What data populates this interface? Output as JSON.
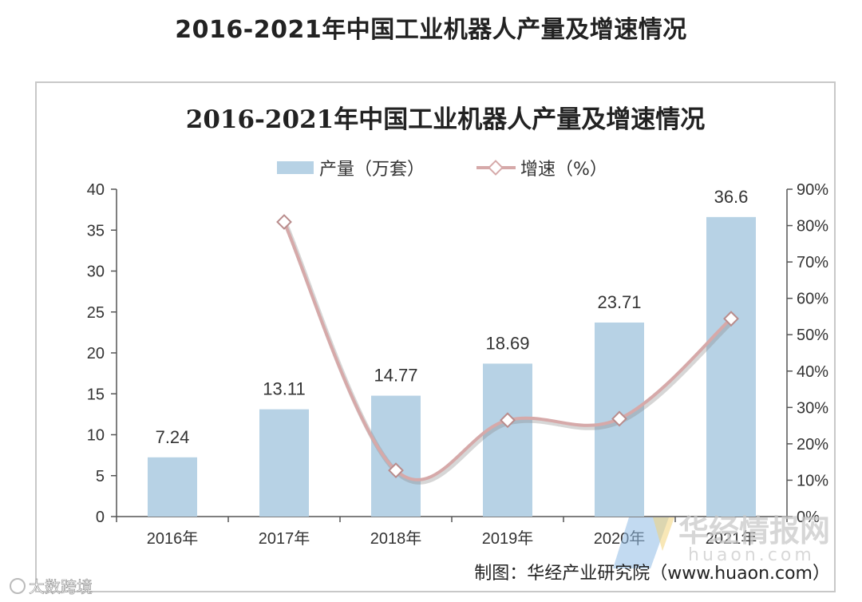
{
  "page": {
    "title": "2016-2021年中国工业机器人产量及增速情况"
  },
  "chart_data": {
    "type": "bar",
    "title": "2016-2021年中国工业机器人产量及增速情况",
    "categories": [
      "2016年",
      "2017年",
      "2018年",
      "2019年",
      "2020年",
      "2021年"
    ],
    "series": [
      {
        "name": "产量（万套）",
        "type": "bar",
        "axis": "left",
        "color": "#b7d2e5",
        "values": [
          7.24,
          13.11,
          14.77,
          18.69,
          23.71,
          36.6
        ],
        "labels": [
          "7.24",
          "13.11",
          "14.77",
          "18.69",
          "23.71",
          "36.6"
        ]
      },
      {
        "name": "增速（%）",
        "type": "line",
        "axis": "right",
        "color": "#d6a9a9",
        "values": [
          null,
          81,
          12.7,
          26.5,
          26.9,
          54.4
        ]
      }
    ],
    "y_left": {
      "min": 0,
      "max": 40,
      "step": 5,
      "ticks": [
        "0",
        "5",
        "10",
        "15",
        "20",
        "25",
        "30",
        "35",
        "40"
      ]
    },
    "y_right": {
      "min": 0,
      "max": 90,
      "step": 10,
      "ticks": [
        "0%",
        "10%",
        "20%",
        "30%",
        "40%",
        "50%",
        "60%",
        "70%",
        "80%",
        "90%"
      ]
    },
    "legend": {
      "position": "top"
    },
    "grid": false
  },
  "source": "制图：华经产业研究院（www.huaon.com）",
  "watermark": {
    "cn": "华经情报网",
    "en": "huaon.com"
  },
  "corner_watermark": "大数跨境"
}
